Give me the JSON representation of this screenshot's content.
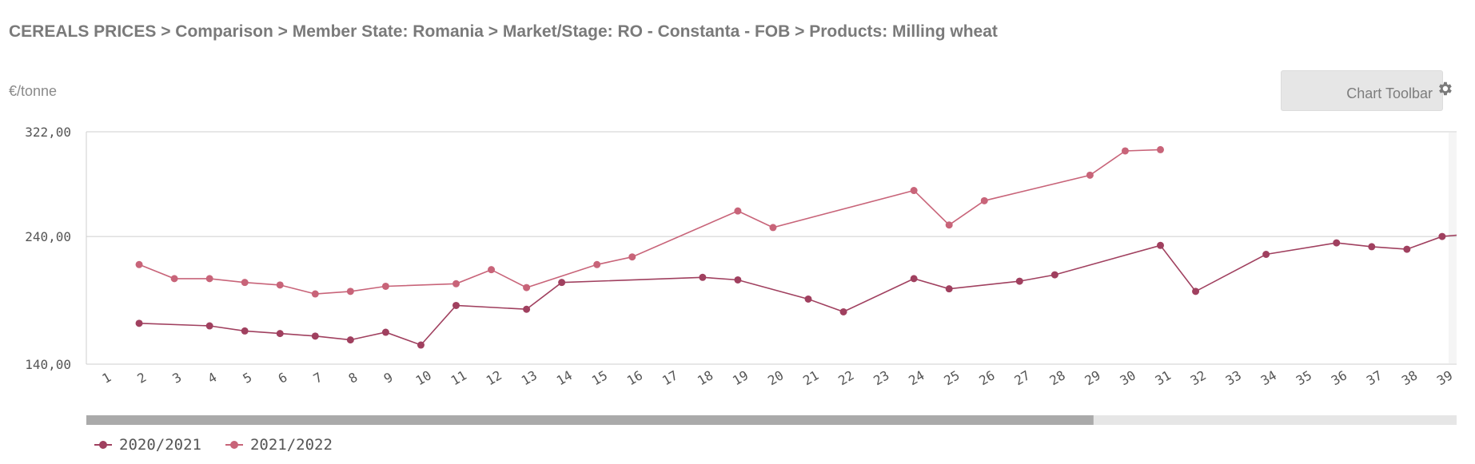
{
  "page": {
    "breadcrumb": "CEREALS PRICES > Comparison > Member State: Romania > Market/Stage: RO - Constanta - FOB > Products: Milling wheat",
    "unit_label": "€/tonne",
    "toolbar_label": "Chart Toolbar"
  },
  "chart_data": {
    "type": "line",
    "title": "CEREALS PRICES > Comparison > Member State: Romania > Market/Stage: RO - Constanta - FOB > Products: Milling wheat",
    "xlabel": "",
    "ylabel": "€/tonne",
    "ylim": [
      140,
      322
    ],
    "y_ticks": [
      140,
      240,
      322
    ],
    "y_tick_labels": [
      "140,00",
      "240,00",
      "322,00"
    ],
    "categories": [
      "1",
      "2",
      "3",
      "4",
      "5",
      "6",
      "7",
      "8",
      "9",
      "10",
      "11",
      "12",
      "13",
      "14",
      "15",
      "16",
      "17",
      "18",
      "19",
      "20",
      "21",
      "22",
      "23",
      "24",
      "25",
      "26",
      "27",
      "28",
      "29",
      "30",
      "31",
      "32",
      "33",
      "34",
      "35",
      "36",
      "37",
      "38",
      "39"
    ],
    "series": [
      {
        "name": "2020/2021",
        "color": "#a0405f",
        "values": [
          null,
          172,
          null,
          170,
          166,
          164,
          162,
          159,
          165,
          155,
          186,
          null,
          183,
          204,
          null,
          null,
          null,
          208,
          206,
          null,
          191,
          181,
          null,
          207,
          199,
          null,
          205,
          210,
          null,
          null,
          233,
          197,
          null,
          226,
          null,
          235,
          232,
          230,
          240
        ]
      },
      {
        "name": "2021/2022",
        "color": "#c86479",
        "values": [
          null,
          218,
          207,
          207,
          204,
          202,
          195,
          197,
          201,
          null,
          203,
          214,
          200,
          null,
          218,
          224,
          null,
          null,
          260,
          247,
          null,
          null,
          null,
          276,
          249,
          268,
          null,
          null,
          288,
          307,
          308,
          null,
          null,
          null,
          null,
          null,
          null,
          null,
          null
        ]
      }
    ],
    "grid": "horizontal",
    "legend_position": "bottom-left",
    "scrollbar": {
      "visible_fraction": 0.735
    }
  }
}
